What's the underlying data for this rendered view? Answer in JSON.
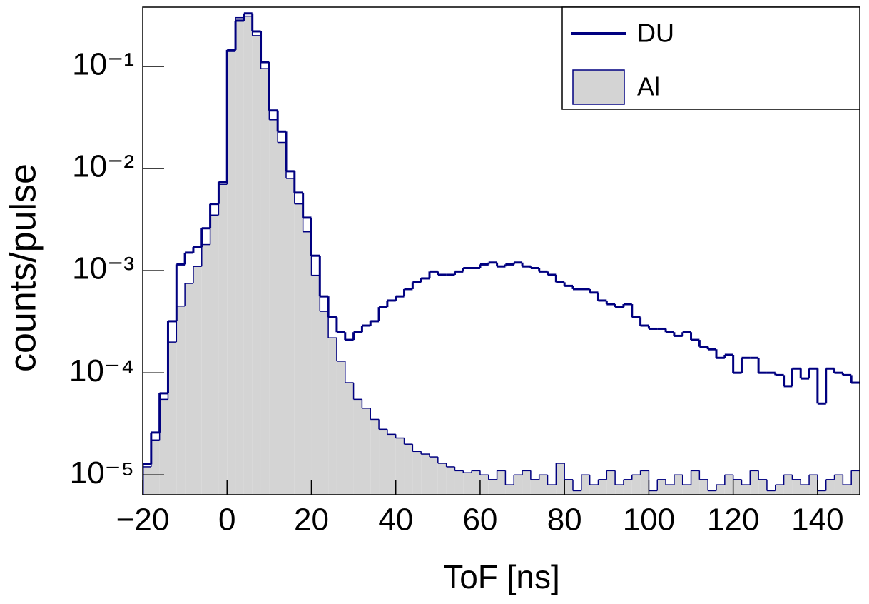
{
  "chart_data": {
    "type": "histogram",
    "x_label": "ToF [ns]",
    "y_label": "counts/pulse",
    "bins": [
      -20,
      -18,
      -16,
      -14,
      -12,
      -10,
      -8,
      -6,
      -4,
      -2,
      0,
      2,
      4,
      6,
      8,
      10,
      12,
      14,
      16,
      18,
      20,
      22,
      24,
      26,
      28,
      30,
      32,
      34,
      36,
      38,
      40,
      42,
      44,
      46,
      48,
      50,
      52,
      54,
      56,
      58,
      60,
      62,
      64,
      66,
      68,
      70,
      72,
      74,
      76,
      78,
      80,
      82,
      84,
      86,
      88,
      90,
      92,
      94,
      96,
      98,
      100,
      102,
      104,
      106,
      108,
      110,
      112,
      114,
      116,
      118,
      120,
      122,
      124,
      126,
      128,
      130,
      132,
      134,
      136,
      138,
      140,
      142,
      144,
      146,
      148,
      150
    ],
    "series": [
      {
        "name": "DU",
        "color": "#000080",
        "fill": null,
        "values": [
          1.27e-05,
          2.6e-05,
          6.3e-05,
          0.00032,
          0.00115,
          0.0015,
          0.0017,
          0.0026,
          0.0045,
          0.0074,
          0.145,
          0.28,
          0.33,
          0.22,
          0.11,
          0.037,
          0.023,
          0.0094,
          0.0058,
          0.0033,
          0.0014,
          0.00056,
          0.00035,
          0.00025,
          0.00021,
          0.00025,
          0.00029,
          0.00032,
          0.00044,
          0.00051,
          0.00056,
          0.00066,
          0.00077,
          0.00084,
          0.00098,
          0.00091,
          0.00091,
          0.00098,
          0.00106,
          0.00106,
          0.00115,
          0.0012,
          0.0011,
          0.00115,
          0.0012,
          0.0011,
          0.00106,
          0.00098,
          0.00091,
          0.00077,
          0.00071,
          0.00066,
          0.00066,
          0.00061,
          0.00051,
          0.00047,
          0.00044,
          0.00047,
          0.00035,
          0.00029,
          0.00027,
          0.00027,
          0.00025,
          0.00023,
          0.00025,
          0.00021,
          0.00018,
          0.00017,
          0.00014,
          0.00015,
          0.0001,
          0.00014,
          0.00014,
          0.0001,
          0.0001,
          9.5e-05,
          7.4e-05,
          0.00011,
          8.8e-05,
          0.00011,
          5e-05,
          0.00011,
          0.0001,
          9.5e-05,
          8e-05
        ]
      },
      {
        "name": "Al",
        "color": "#000080",
        "fill": "#d4d4d4",
        "values": [
          1.2e-05,
          2.2e-05,
          5.5e-05,
          0.0002,
          0.00045,
          0.00075,
          0.0011,
          0.0018,
          0.0035,
          0.007,
          0.14,
          0.3,
          0.31,
          0.2,
          0.095,
          0.03,
          0.018,
          0.008,
          0.0045,
          0.0024,
          0.0009,
          0.0004,
          0.00022,
          0.00013,
          8e-05,
          5.5e-05,
          4.5e-05,
          3.5e-05,
          2.8e-05,
          2.5e-05,
          2.3e-05,
          2e-05,
          1.7e-05,
          1.6e-05,
          1.5e-05,
          1.3e-05,
          1.2e-05,
          1.1e-05,
          1.05e-05,
          1.1e-05,
          1e-05,
          9e-06,
          1.1e-05,
          8e-06,
          1e-05,
          1.1e-05,
          9e-06,
          1e-05,
          8e-06,
          1.3e-05,
          9e-06,
          7e-06,
          1e-05,
          8e-06,
          9e-06,
          1.1e-05,
          8e-06,
          9e-06,
          1e-05,
          1.1e-05,
          7e-06,
          9e-06,
          8e-06,
          1e-05,
          8e-06,
          1.1e-05,
          9e-06,
          7e-06,
          8e-06,
          1e-05,
          9e-06,
          8e-06,
          1.1e-05,
          9e-06,
          7e-06,
          8e-06,
          1e-05,
          9e-06,
          8e-06,
          1e-05,
          7e-06,
          9e-06,
          1e-05,
          8e-06,
          1.1e-05
        ]
      }
    ],
    "xlim": [
      -20,
      150
    ],
    "xticks": [
      {
        "value": -20,
        "label": "−20"
      },
      0,
      20,
      40,
      60,
      80,
      100,
      120,
      140
    ],
    "ylim": [
      6.4e-06,
      0.38
    ],
    "ylog": true,
    "yticks": [
      {
        "value": 1e-05,
        "label": "10⁻⁵"
      },
      {
        "value": 0.0001,
        "label": "10⁻⁴"
      },
      {
        "value": 0.001,
        "label": "10⁻³"
      },
      {
        "value": 0.01,
        "label": "10⁻²"
      },
      {
        "value": 0.1,
        "label": "10⁻¹"
      }
    ],
    "legend": "top-right",
    "grid": false
  }
}
